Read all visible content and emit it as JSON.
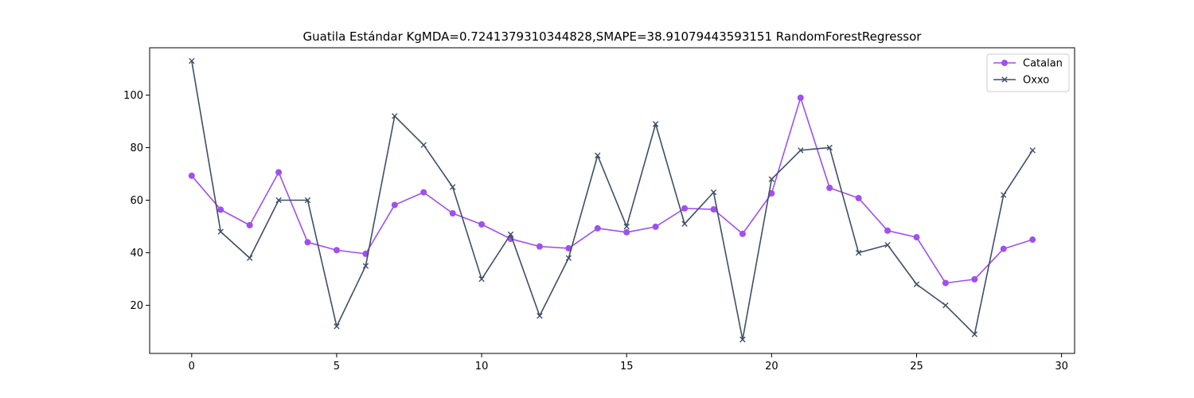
{
  "chart_data": {
    "type": "line",
    "title": "Guatila Estándar KgMDA=0.7241379310344828,SMAPE=38.91079443593151 RandomForestRegressor",
    "xlabel": "",
    "ylabel": "",
    "xlim": [
      -1.45,
      30.45
    ],
    "ylim": [
      1.7,
      118.0
    ],
    "xticks": [
      0,
      5,
      10,
      15,
      20,
      25,
      30
    ],
    "yticks": [
      20,
      40,
      60,
      80,
      100
    ],
    "grid": false,
    "legend_position": "top-right",
    "x": [
      0,
      1,
      2,
      3,
      4,
      5,
      6,
      7,
      8,
      9,
      10,
      11,
      12,
      13,
      14,
      15,
      16,
      17,
      18,
      19,
      20,
      21,
      22,
      23,
      24,
      25,
      26,
      27,
      28,
      29
    ],
    "series": [
      {
        "name": "Catalan",
        "color": "#a04ff0",
        "marker": "circle",
        "values": [
          69.3,
          56.4,
          50.5,
          70.6,
          44.0,
          41.0,
          39.6,
          58.2,
          63.0,
          55.0,
          50.8,
          45.3,
          42.4,
          41.7,
          49.3,
          47.8,
          49.9,
          56.9,
          56.5,
          47.2,
          62.6,
          99.0,
          64.7,
          60.8,
          48.4,
          45.9,
          28.5,
          29.9,
          41.5,
          45.0
        ]
      },
      {
        "name": "Oxxo",
        "color": "#3e4f66",
        "marker": "x",
        "values": [
          113,
          48,
          38,
          60,
          60,
          12,
          35,
          92,
          81,
          65,
          30,
          47,
          16,
          38,
          77,
          50,
          89,
          51,
          63,
          7,
          68,
          79,
          80,
          40,
          43,
          28,
          20,
          9,
          62,
          79
        ]
      }
    ]
  }
}
